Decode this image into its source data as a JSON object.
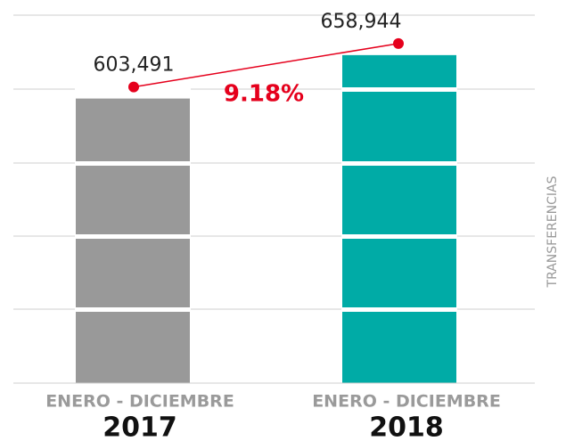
{
  "chart_data": {
    "type": "bar",
    "categories": [
      "2017",
      "2018"
    ],
    "period_label": "ENERO - DICIEMBRE",
    "values": [
      603491,
      658944
    ],
    "value_labels": [
      "603,491",
      "658,944"
    ],
    "colors": [
      "#999999",
      "#00aba6"
    ],
    "line_color": "#e5001c",
    "annotation": "9.18%",
    "y_label": "TRANSFERENCIAS",
    "ylim": [
      240000,
      710000
    ]
  }
}
